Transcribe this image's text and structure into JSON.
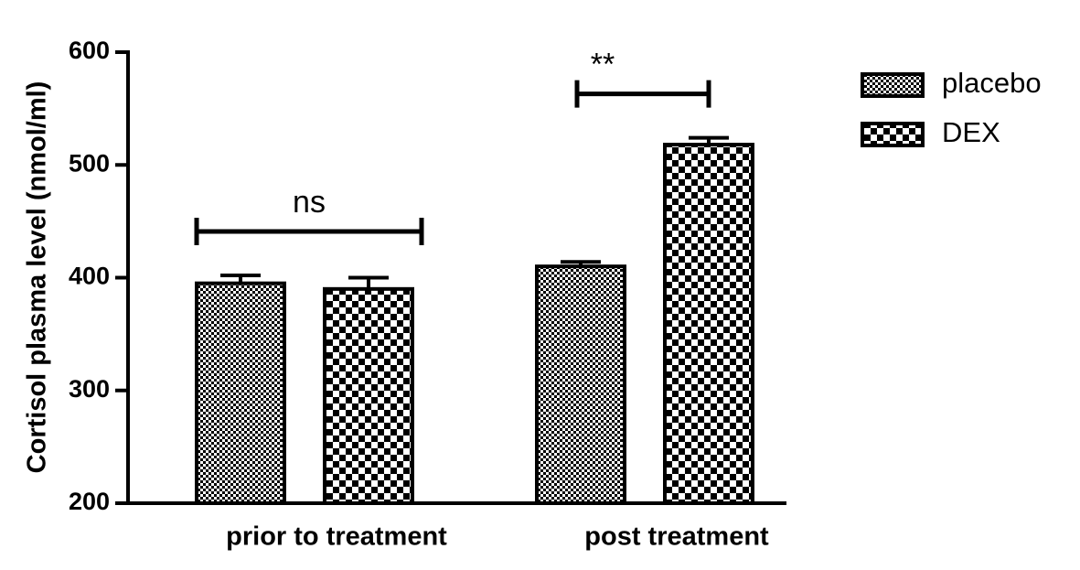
{
  "chart_data": {
    "type": "bar",
    "ylabel": "Cortisol plasma level (nmol/ml)",
    "categories": [
      "prior to treatment",
      "post treatment"
    ],
    "series": [
      {
        "name": "placebo",
        "color": "#000000",
        "values": [
          395,
          410
        ],
        "errors": [
          7,
          4
        ]
      },
      {
        "name": "DEX",
        "color": "#000000",
        "values": [
          390,
          518
        ],
        "errors": [
          10,
          6
        ]
      }
    ],
    "annotations": [
      {
        "text": "ns"
      },
      {
        "text": "**"
      }
    ],
    "ylim": [
      200,
      600
    ],
    "yticks": [
      200,
      300,
      400,
      500,
      600
    ],
    "legend": "right"
  }
}
